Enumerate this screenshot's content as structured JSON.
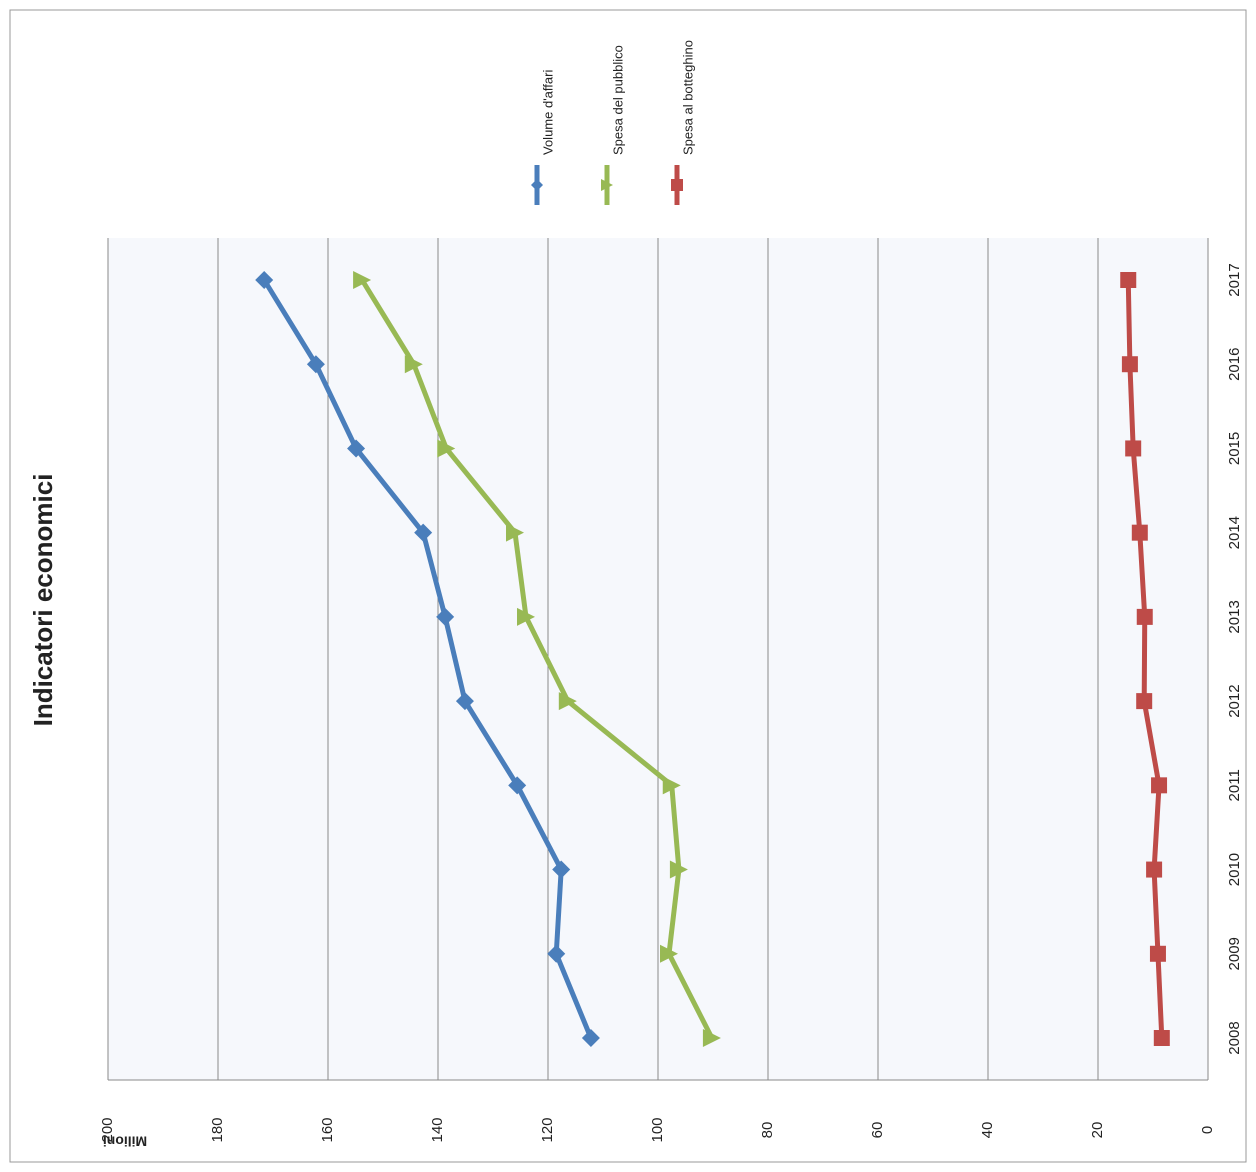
{
  "chart_data": {
    "type": "line",
    "title": "Indicatori economici",
    "y_label": "Milioni",
    "orientation": "rotated",
    "categories": [
      "2008",
      "2009",
      "2010",
      "2011",
      "2012",
      "2013",
      "2014",
      "2015",
      "2016",
      "2017"
    ],
    "series": [
      {
        "name": "Volume d'affari",
        "color": "#4a7ebb",
        "marker": "diamond",
        "values": [
          112.2,
          118.5,
          117.6,
          125.6,
          135.1,
          138.7,
          142.7,
          154.9,
          162.2,
          171.6
        ]
      },
      {
        "name": "Spesa del pubblico",
        "color": "#98b954",
        "marker": "triangle",
        "values": [
          90.2,
          98,
          96.2,
          97.5,
          116.4,
          124,
          126,
          138.5,
          144.4,
          153.8
        ]
      },
      {
        "name": "Spesa al botteghino",
        "color": "#be4b48",
        "marker": "square",
        "values": [
          8.4,
          9.1,
          9.8,
          8.9,
          11.6,
          11.5,
          12.4,
          13.6,
          14.2,
          14.5
        ]
      }
    ],
    "ylim": [
      0,
      200
    ],
    "yticks": [
      0,
      20,
      40,
      60,
      80,
      100,
      120,
      140,
      160,
      180,
      200
    ],
    "grid": true
  }
}
